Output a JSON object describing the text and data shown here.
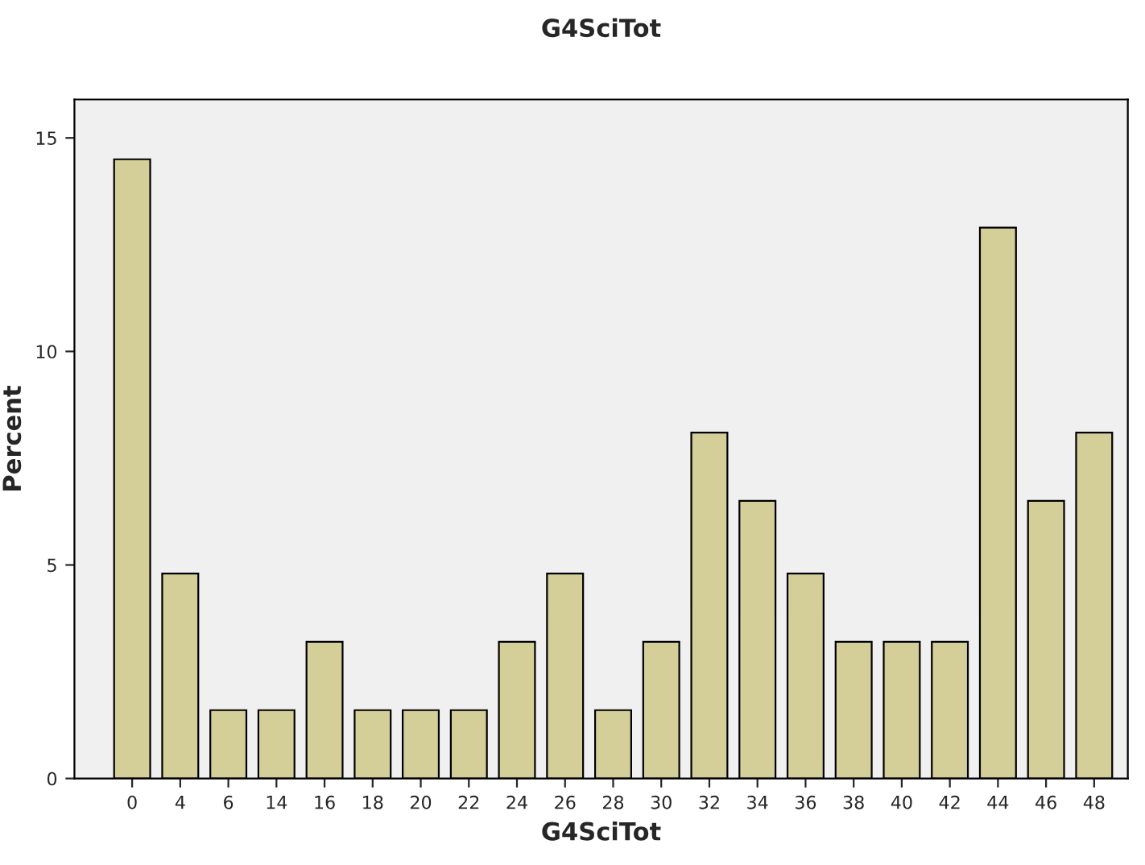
{
  "chart_data": {
    "type": "bar",
    "title": "G4SciTot",
    "xlabel": "G4SciTot",
    "ylabel": "Percent",
    "categories": [
      "0",
      "4",
      "6",
      "14",
      "16",
      "18",
      "20",
      "22",
      "24",
      "26",
      "28",
      "30",
      "32",
      "34",
      "36",
      "38",
      "40",
      "42",
      "44",
      "46",
      "48"
    ],
    "values": [
      14.5,
      4.8,
      1.6,
      1.6,
      3.2,
      1.6,
      1.6,
      1.6,
      3.2,
      4.8,
      1.6,
      3.2,
      8.1,
      6.5,
      4.8,
      3.2,
      3.2,
      3.2,
      12.9,
      6.5,
      8.1
    ],
    "color": "#d4cf98",
    "ylim": [
      0,
      15.9
    ],
    "yticks": [
      0,
      5,
      10,
      15
    ],
    "grid": false,
    "legend": false
  }
}
